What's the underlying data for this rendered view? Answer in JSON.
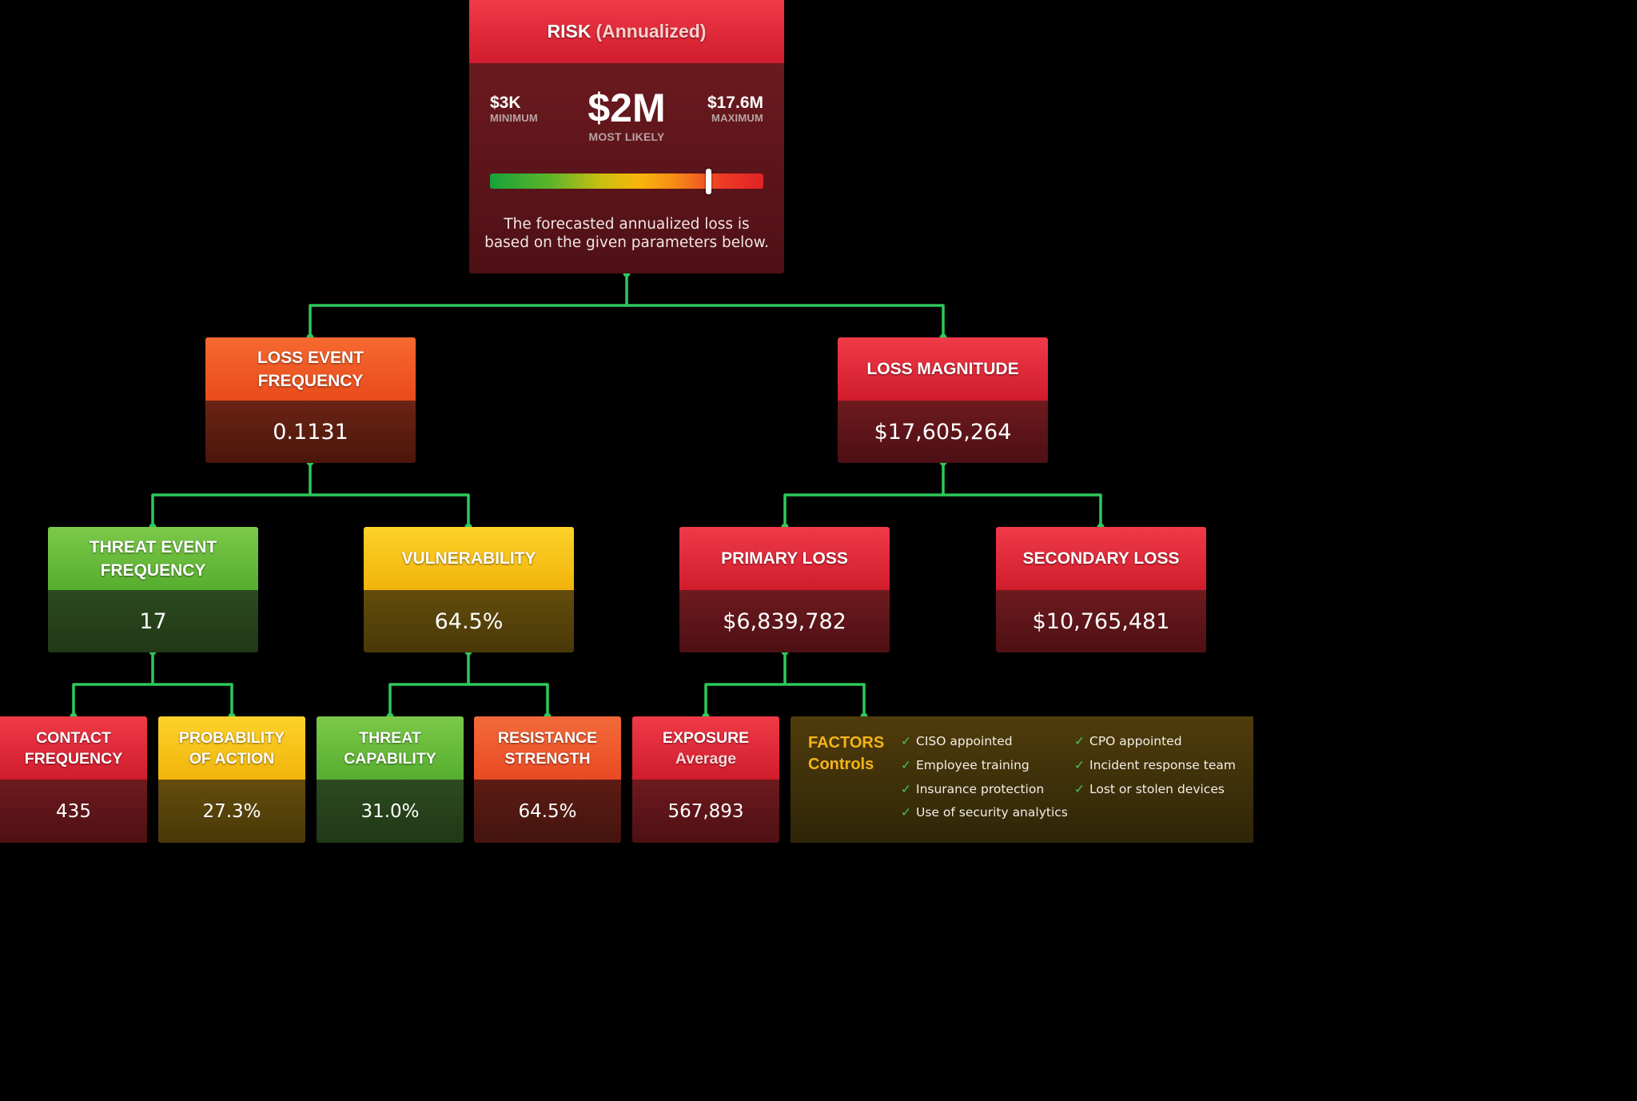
{
  "risk": {
    "title": "RISK",
    "title_suffix": "(Annualized)",
    "minimum": {
      "value": "$3K",
      "label": "MINIMUM"
    },
    "most_likely": {
      "value": "$2M",
      "label": "MOST LIKELY"
    },
    "maximum": {
      "value": "$17.6M",
      "label": "MAXIMUM"
    },
    "gauge_level": 0.8,
    "description": "The forecasted annualized loss is\nbased on the given parameters below."
  },
  "nodes": {
    "loss_event_frequency": {
      "title": "LOSS EVENT FREQUENCY",
      "value": "0.1131"
    },
    "loss_magnitude": {
      "title": "LOSS MAGNITUDE",
      "value": "$17,605,264"
    },
    "threat_event_frequency": {
      "title": "THREAT EVENT FREQUENCY",
      "value": "17"
    },
    "vulnerability": {
      "title": "VULNERABILITY",
      "value": "64.5%"
    },
    "primary_loss": {
      "title": "PRIMARY LOSS",
      "value": "$6,839,782"
    },
    "secondary_loss": {
      "title": "SECONDARY LOSS",
      "value": "$10,765,481"
    },
    "contact_frequency": {
      "title": "CONTACT FREQUENCY",
      "value": "435"
    },
    "probability_of_action": {
      "title": "PROBABILITY OF ACTION",
      "value": "27.3%"
    },
    "threat_capability": {
      "title": "THREAT CAPABILITY",
      "value": "31.0%"
    },
    "resistance_strength": {
      "title": "RESISTANCE STRENGTH",
      "value": "64.5%"
    },
    "exposure": {
      "title": "EXPOSURE",
      "subtitle": "Average",
      "value": "567,893"
    }
  },
  "factors": {
    "title": "FACTORS",
    "subtitle": "Controls",
    "items": [
      "CISO appointed",
      "Employee training",
      "Insurance protection",
      "Use of security analytics",
      "CPO appointed",
      "Incident response team",
      "Lost or stolen devices"
    ]
  },
  "colors": {
    "connector": "#2ec95c",
    "red": "#e42a38",
    "orange": "#f15b26",
    "green": "#6cbc3c",
    "yellow": "#f8c419",
    "factors_title": "#f4b418"
  },
  "icons": {
    "check": "check-icon"
  }
}
